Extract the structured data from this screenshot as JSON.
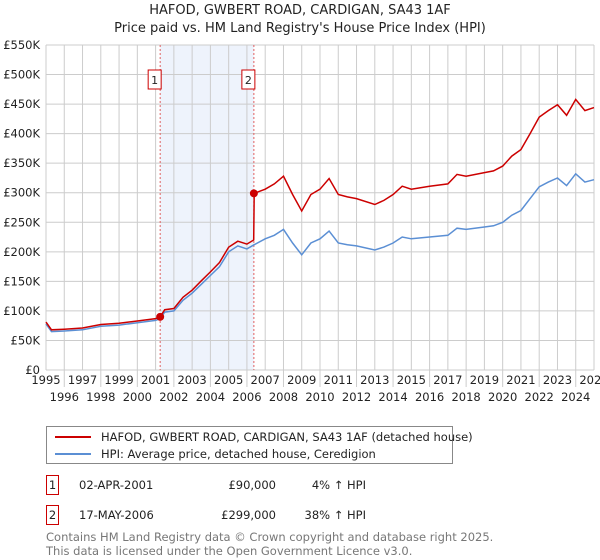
{
  "chart_data": {
    "type": "line",
    "title": "HAFOD, GWBERT ROAD, CARDIGAN, SA43 1AF",
    "subtitle": "Price paid vs. HM Land Registry's House Price Index (HPI)",
    "xlim": [
      1995,
      2025
    ],
    "ylim": [
      0,
      550000
    ],
    "x_ticks": [
      "1995",
      "1996",
      "1997",
      "1998",
      "1999",
      "2000",
      "2001",
      "2002",
      "2003",
      "2004",
      "2005",
      "2006",
      "2007",
      "2008",
      "2009",
      "2010",
      "2011",
      "2012",
      "2013",
      "2014",
      "2015",
      "2016",
      "2017",
      "2018",
      "2019",
      "2020",
      "2021",
      "2022",
      "2023",
      "2024",
      "2025"
    ],
    "y_ticks": [
      {
        "v": 0,
        "label": "£0"
      },
      {
        "v": 50000,
        "label": "£50K"
      },
      {
        "v": 100000,
        "label": "£100K"
      },
      {
        "v": 150000,
        "label": "£150K"
      },
      {
        "v": 200000,
        "label": "£200K"
      },
      {
        "v": 250000,
        "label": "£250K"
      },
      {
        "v": 300000,
        "label": "£300K"
      },
      {
        "v": 350000,
        "label": "£350K"
      },
      {
        "v": 400000,
        "label": "£400K"
      },
      {
        "v": 450000,
        "label": "£450K"
      },
      {
        "v": 500000,
        "label": "£500K"
      },
      {
        "v": 550000,
        "label": "£550K"
      }
    ],
    "grid": true,
    "series": [
      {
        "name": "HAFOD, GWBERT ROAD, CARDIGAN, SA43 1AF (detached house)",
        "color": "#cc0000",
        "x": [
          1995,
          1995.3,
          1996,
          1997,
          1998,
          1999,
          2000,
          2001,
          2001.25,
          2001.5,
          2002,
          2002.5,
          2003,
          2003.5,
          2004,
          2004.5,
          2005,
          2005.5,
          2006,
          2006.37,
          2006.4,
          2007,
          2007.5,
          2008,
          2008.5,
          2009,
          2009.5,
          2010,
          2010.5,
          2011,
          2011.5,
          2012,
          2013,
          2013.5,
          2014,
          2014.5,
          2015,
          2016,
          2017,
          2017.5,
          2018,
          2019,
          2019.5,
          2020,
          2020.5,
          2021,
          2021.5,
          2022,
          2022.5,
          2023,
          2023.5,
          2024,
          2024.5,
          2025
        ],
        "y": [
          81000,
          68000,
          69000,
          71000,
          77000,
          79000,
          83000,
          87000,
          90000,
          102000,
          104000,
          123000,
          135000,
          151000,
          166000,
          182000,
          208000,
          218000,
          213000,
          220000,
          299000,
          306000,
          315000,
          328000,
          297000,
          269000,
          297000,
          306000,
          324000,
          297000,
          293000,
          290000,
          280000,
          287000,
          297000,
          311000,
          306000,
          311000,
          315000,
          331000,
          328000,
          334000,
          337000,
          345000,
          362000,
          373000,
          400000,
          428000,
          439000,
          449000,
          431000,
          458000,
          439000,
          444000
        ]
      },
      {
        "name": "HPI: Average price, detached house, Ceredigion",
        "color": "#5b8fd4",
        "x": [
          1995,
          1995.3,
          1996,
          1997,
          1998,
          1999,
          2000,
          2001,
          2001.25,
          2001.5,
          2002,
          2002.5,
          2003,
          2003.5,
          2004,
          2004.5,
          2005,
          2005.5,
          2006,
          2006.4,
          2007,
          2007.5,
          2008,
          2008.5,
          2009,
          2009.5,
          2010,
          2010.5,
          2011,
          2011.5,
          2012,
          2013,
          2013.5,
          2014,
          2014.5,
          2015,
          2016,
          2017,
          2017.5,
          2018,
          2019,
          2019.5,
          2020,
          2020.5,
          2021,
          2021.5,
          2022,
          2022.5,
          2023,
          2023.5,
          2024,
          2024.5,
          2025
        ],
        "y": [
          78000,
          65000,
          66000,
          68000,
          74000,
          76000,
          80000,
          84000,
          87000,
          98000,
          100000,
          118000,
          130000,
          145000,
          160000,
          175000,
          200000,
          210000,
          205000,
          212000,
          222000,
          228000,
          238000,
          215000,
          195000,
          215000,
          222000,
          235000,
          215000,
          212000,
          210000,
          203000,
          208000,
          215000,
          225000,
          222000,
          225000,
          228000,
          240000,
          238000,
          242000,
          244000,
          250000,
          262000,
          270000,
          290000,
          310000,
          318000,
          325000,
          312000,
          332000,
          318000,
          322000
        ]
      }
    ],
    "sales": [
      {
        "id": "1",
        "x": 2001.25,
        "y": 90000,
        "date": "02-APR-2001",
        "price": "£90,000",
        "hpi": "4% ↑ HPI"
      },
      {
        "id": "2",
        "x": 2006.38,
        "y": 299000,
        "date": "17-MAY-2006",
        "price": "£299,000",
        "hpi": "38% ↑ HPI"
      }
    ]
  },
  "footer": {
    "line1": "Contains HM Land Registry data © Crown copyright and database right 2025.",
    "line2": "This data is licensed under the Open Government Licence v3.0."
  }
}
